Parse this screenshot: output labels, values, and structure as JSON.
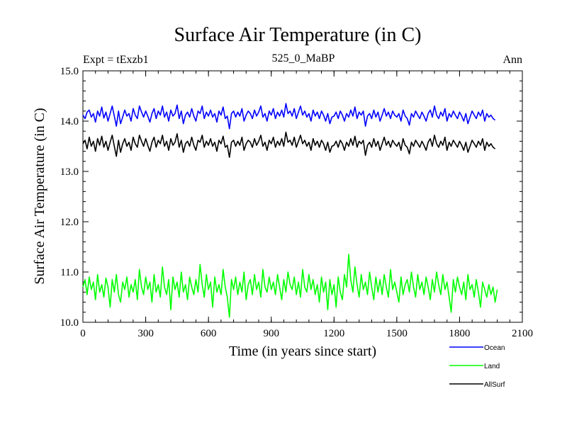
{
  "chart_data": {
    "type": "line",
    "title": "Surface Air Temperature (in C)",
    "subtitle_left": "Expt = tExzb1",
    "subtitle_center": "525_0_MaBP",
    "subtitle_right": "Ann",
    "xlabel": "Time (in years since start)",
    "ylabel": "Surface Air Temperature (in C)",
    "xlim": [
      0,
      2100
    ],
    "ylim": [
      10.0,
      15.0
    ],
    "x_ticks": [
      0,
      300,
      600,
      900,
      1200,
      1500,
      1800,
      2100
    ],
    "x_tick_labels": [
      "0",
      "300",
      "600",
      "900",
      "1200",
      "1500",
      "1800",
      "2100"
    ],
    "y_ticks": [
      10,
      11,
      12,
      13,
      14,
      15
    ],
    "y_tick_labels": [
      "10.0",
      "11.0",
      "12.0",
      "13.0",
      "14.0",
      "15.0"
    ],
    "x_start": 0,
    "x_end": 2000,
    "x_step": 10,
    "legend_position": "bottom-right, below plot",
    "series": [
      {
        "name": "Ocean",
        "color": "#0000ff",
        "values": [
          14.12,
          14.05,
          14.18,
          14.22,
          14.08,
          14.15,
          13.98,
          14.2,
          14.1,
          14.28,
          14.06,
          14.18,
          14.0,
          14.15,
          14.3,
          14.1,
          13.9,
          14.2,
          13.95,
          14.08,
          14.22,
          14.1,
          14.15,
          14.0,
          14.25,
          14.12,
          14.05,
          14.3,
          14.18,
          14.08,
          14.2,
          14.1,
          13.98,
          14.15,
          14.25,
          14.05,
          14.2,
          14.12,
          14.3,
          14.08,
          14.18,
          14.0,
          14.22,
          14.1,
          14.15,
          14.32,
          14.05,
          14.2,
          13.95,
          14.12,
          14.18,
          14.08,
          14.25,
          14.1,
          14.0,
          14.2,
          14.15,
          14.3,
          14.05,
          14.18,
          14.1,
          14.22,
          14.08,
          14.15,
          13.98,
          14.2,
          14.12,
          14.28,
          14.05,
          14.1,
          13.85,
          14.15,
          14.2,
          14.08,
          14.18,
          14.1,
          14.25,
          14.0,
          14.12,
          14.2,
          14.15,
          14.05,
          14.22,
          14.1,
          14.18,
          14.3,
          14.08,
          14.15,
          14.0,
          14.2,
          14.12,
          14.25,
          14.05,
          14.18,
          14.1,
          14.22,
          14.08,
          14.35,
          14.15,
          14.2,
          14.1,
          14.25,
          14.05,
          14.18,
          14.3,
          14.12,
          14.2,
          14.08,
          14.15,
          14.0,
          14.22,
          14.1,
          14.18,
          14.05,
          14.2,
          14.12,
          14.0,
          14.15,
          13.95,
          14.08,
          14.1,
          14.18,
          14.05,
          14.2,
          14.12,
          14.0,
          14.15,
          14.08,
          14.22,
          14.1,
          14.28,
          14.05,
          14.18,
          14.12,
          14.2,
          13.9,
          14.1,
          14.15,
          14.05,
          14.22,
          14.08,
          14.18,
          14.0,
          14.12,
          14.25,
          14.1,
          14.18,
          14.05,
          14.2,
          14.12,
          14.08,
          14.15,
          14.0,
          14.22,
          14.1,
          14.05,
          13.92,
          14.15,
          14.08,
          14.2,
          14.12,
          14.05,
          14.18,
          14.1,
          14.0,
          14.15,
          14.22,
          14.08,
          14.3,
          14.12,
          14.05,
          14.18,
          14.1,
          14.25,
          14.0,
          14.15,
          14.08,
          14.2,
          14.12,
          14.05,
          14.18,
          14.1,
          14.0,
          14.15,
          13.95,
          14.08,
          14.2,
          14.12,
          14.05,
          14.18,
          14.1,
          14.22,
          14.0,
          14.15,
          14.08,
          14.12,
          14.05,
          14.02
        ]
      },
      {
        "name": "Land",
        "color": "#00ff00",
        "values": [
          10.7,
          10.85,
          10.55,
          10.9,
          10.65,
          10.8,
          10.45,
          10.95,
          10.6,
          10.75,
          10.5,
          10.88,
          10.7,
          10.3,
          10.85,
          10.6,
          10.95,
          10.55,
          10.4,
          10.8,
          10.65,
          10.9,
          10.5,
          10.75,
          10.6,
          10.85,
          10.45,
          11.05,
          10.7,
          10.55,
          10.9,
          10.65,
          10.8,
          10.4,
          10.95,
          10.6,
          10.75,
          10.5,
          11.1,
          10.7,
          10.55,
          10.85,
          10.25,
          10.9,
          10.65,
          10.8,
          10.5,
          11.0,
          10.6,
          10.75,
          10.45,
          10.9,
          10.7,
          10.55,
          10.85,
          10.6,
          11.15,
          10.75,
          10.5,
          10.95,
          10.65,
          10.8,
          10.3,
          10.9,
          10.6,
          10.75,
          10.55,
          11.05,
          10.7,
          10.5,
          10.1,
          10.85,
          10.65,
          10.9,
          10.55,
          10.8,
          10.6,
          11.0,
          10.45,
          10.75,
          10.85,
          10.55,
          10.95,
          10.65,
          10.8,
          10.5,
          11.05,
          10.7,
          10.6,
          10.9,
          10.65,
          10.8,
          10.55,
          10.95,
          10.7,
          10.45,
          10.85,
          10.6,
          11.0,
          10.75,
          10.65,
          10.9,
          10.55,
          10.8,
          10.5,
          11.05,
          10.7,
          10.6,
          10.95,
          10.65,
          10.85,
          10.55,
          10.75,
          10.4,
          10.9,
          10.6,
          10.8,
          10.25,
          10.85,
          10.55,
          10.75,
          10.3,
          10.9,
          10.6,
          10.45,
          10.95,
          10.7,
          11.35,
          10.85,
          10.6,
          11.1,
          10.75,
          10.5,
          10.95,
          10.65,
          10.8,
          10.55,
          11.0,
          10.7,
          10.45,
          10.9,
          10.6,
          10.85,
          10.55,
          10.95,
          10.7,
          10.5,
          11.05,
          10.65,
          10.8,
          10.6,
          10.4,
          10.9,
          10.55,
          10.75,
          10.85,
          10.6,
          11.0,
          10.7,
          10.5,
          10.95,
          10.65,
          10.8,
          10.55,
          10.9,
          10.7,
          10.45,
          10.85,
          10.6,
          11.0,
          10.75,
          10.55,
          10.95,
          10.65,
          10.8,
          10.5,
          10.2,
          10.85,
          10.6,
          10.9,
          10.7,
          10.55,
          10.8,
          10.45,
          10.95,
          10.65,
          10.75,
          10.5,
          10.85,
          10.6,
          10.3,
          10.8,
          10.65,
          10.5,
          10.75,
          10.55,
          10.7,
          10.4,
          10.65
        ]
      },
      {
        "name": "AllSurf",
        "color": "#000000",
        "values": [
          13.55,
          13.62,
          13.45,
          13.68,
          13.5,
          13.6,
          13.4,
          13.65,
          13.52,
          13.7,
          13.48,
          13.6,
          13.42,
          13.58,
          13.72,
          13.5,
          13.3,
          13.62,
          13.38,
          13.55,
          13.65,
          13.5,
          13.58,
          13.42,
          13.68,
          13.55,
          13.48,
          13.72,
          13.6,
          13.5,
          13.65,
          13.52,
          13.4,
          13.58,
          13.68,
          13.48,
          13.62,
          13.55,
          13.72,
          13.5,
          13.6,
          13.42,
          13.65,
          13.52,
          13.58,
          13.75,
          13.48,
          13.62,
          13.38,
          13.55,
          13.6,
          13.5,
          13.68,
          13.52,
          13.42,
          13.62,
          13.58,
          13.72,
          13.48,
          13.6,
          13.52,
          13.65,
          13.5,
          13.58,
          13.4,
          13.62,
          13.55,
          13.7,
          13.48,
          13.52,
          13.28,
          13.58,
          13.62,
          13.5,
          13.6,
          13.52,
          13.68,
          13.42,
          13.55,
          13.62,
          13.58,
          13.48,
          13.65,
          13.52,
          13.6,
          13.72,
          13.5,
          13.58,
          13.42,
          13.62,
          13.55,
          13.68,
          13.48,
          13.6,
          13.52,
          13.65,
          13.5,
          13.78,
          13.58,
          13.62,
          13.52,
          13.68,
          13.48,
          13.6,
          13.72,
          13.55,
          13.62,
          13.5,
          13.58,
          13.42,
          13.65,
          13.52,
          13.6,
          13.48,
          13.62,
          13.55,
          13.42,
          13.58,
          13.38,
          13.5,
          13.52,
          13.6,
          13.48,
          13.62,
          13.55,
          13.42,
          13.58,
          13.5,
          13.65,
          13.52,
          13.7,
          13.48,
          13.6,
          13.55,
          13.62,
          13.32,
          13.52,
          13.58,
          13.48,
          13.65,
          13.5,
          13.6,
          13.42,
          13.55,
          13.68,
          13.52,
          13.6,
          13.48,
          13.62,
          13.55,
          13.5,
          13.58,
          13.42,
          13.65,
          13.52,
          13.48,
          13.35,
          13.58,
          13.5,
          13.62,
          13.55,
          13.48,
          13.6,
          13.52,
          13.42,
          13.58,
          13.65,
          13.5,
          13.72,
          13.55,
          13.48,
          13.6,
          13.52,
          13.68,
          13.42,
          13.58,
          13.5,
          13.62,
          13.55,
          13.48,
          13.6,
          13.52,
          13.42,
          13.58,
          13.38,
          13.5,
          13.62,
          13.55,
          13.48,
          13.6,
          13.52,
          13.65,
          13.42,
          13.58,
          13.5,
          13.55,
          13.48,
          13.45
        ]
      }
    ]
  }
}
